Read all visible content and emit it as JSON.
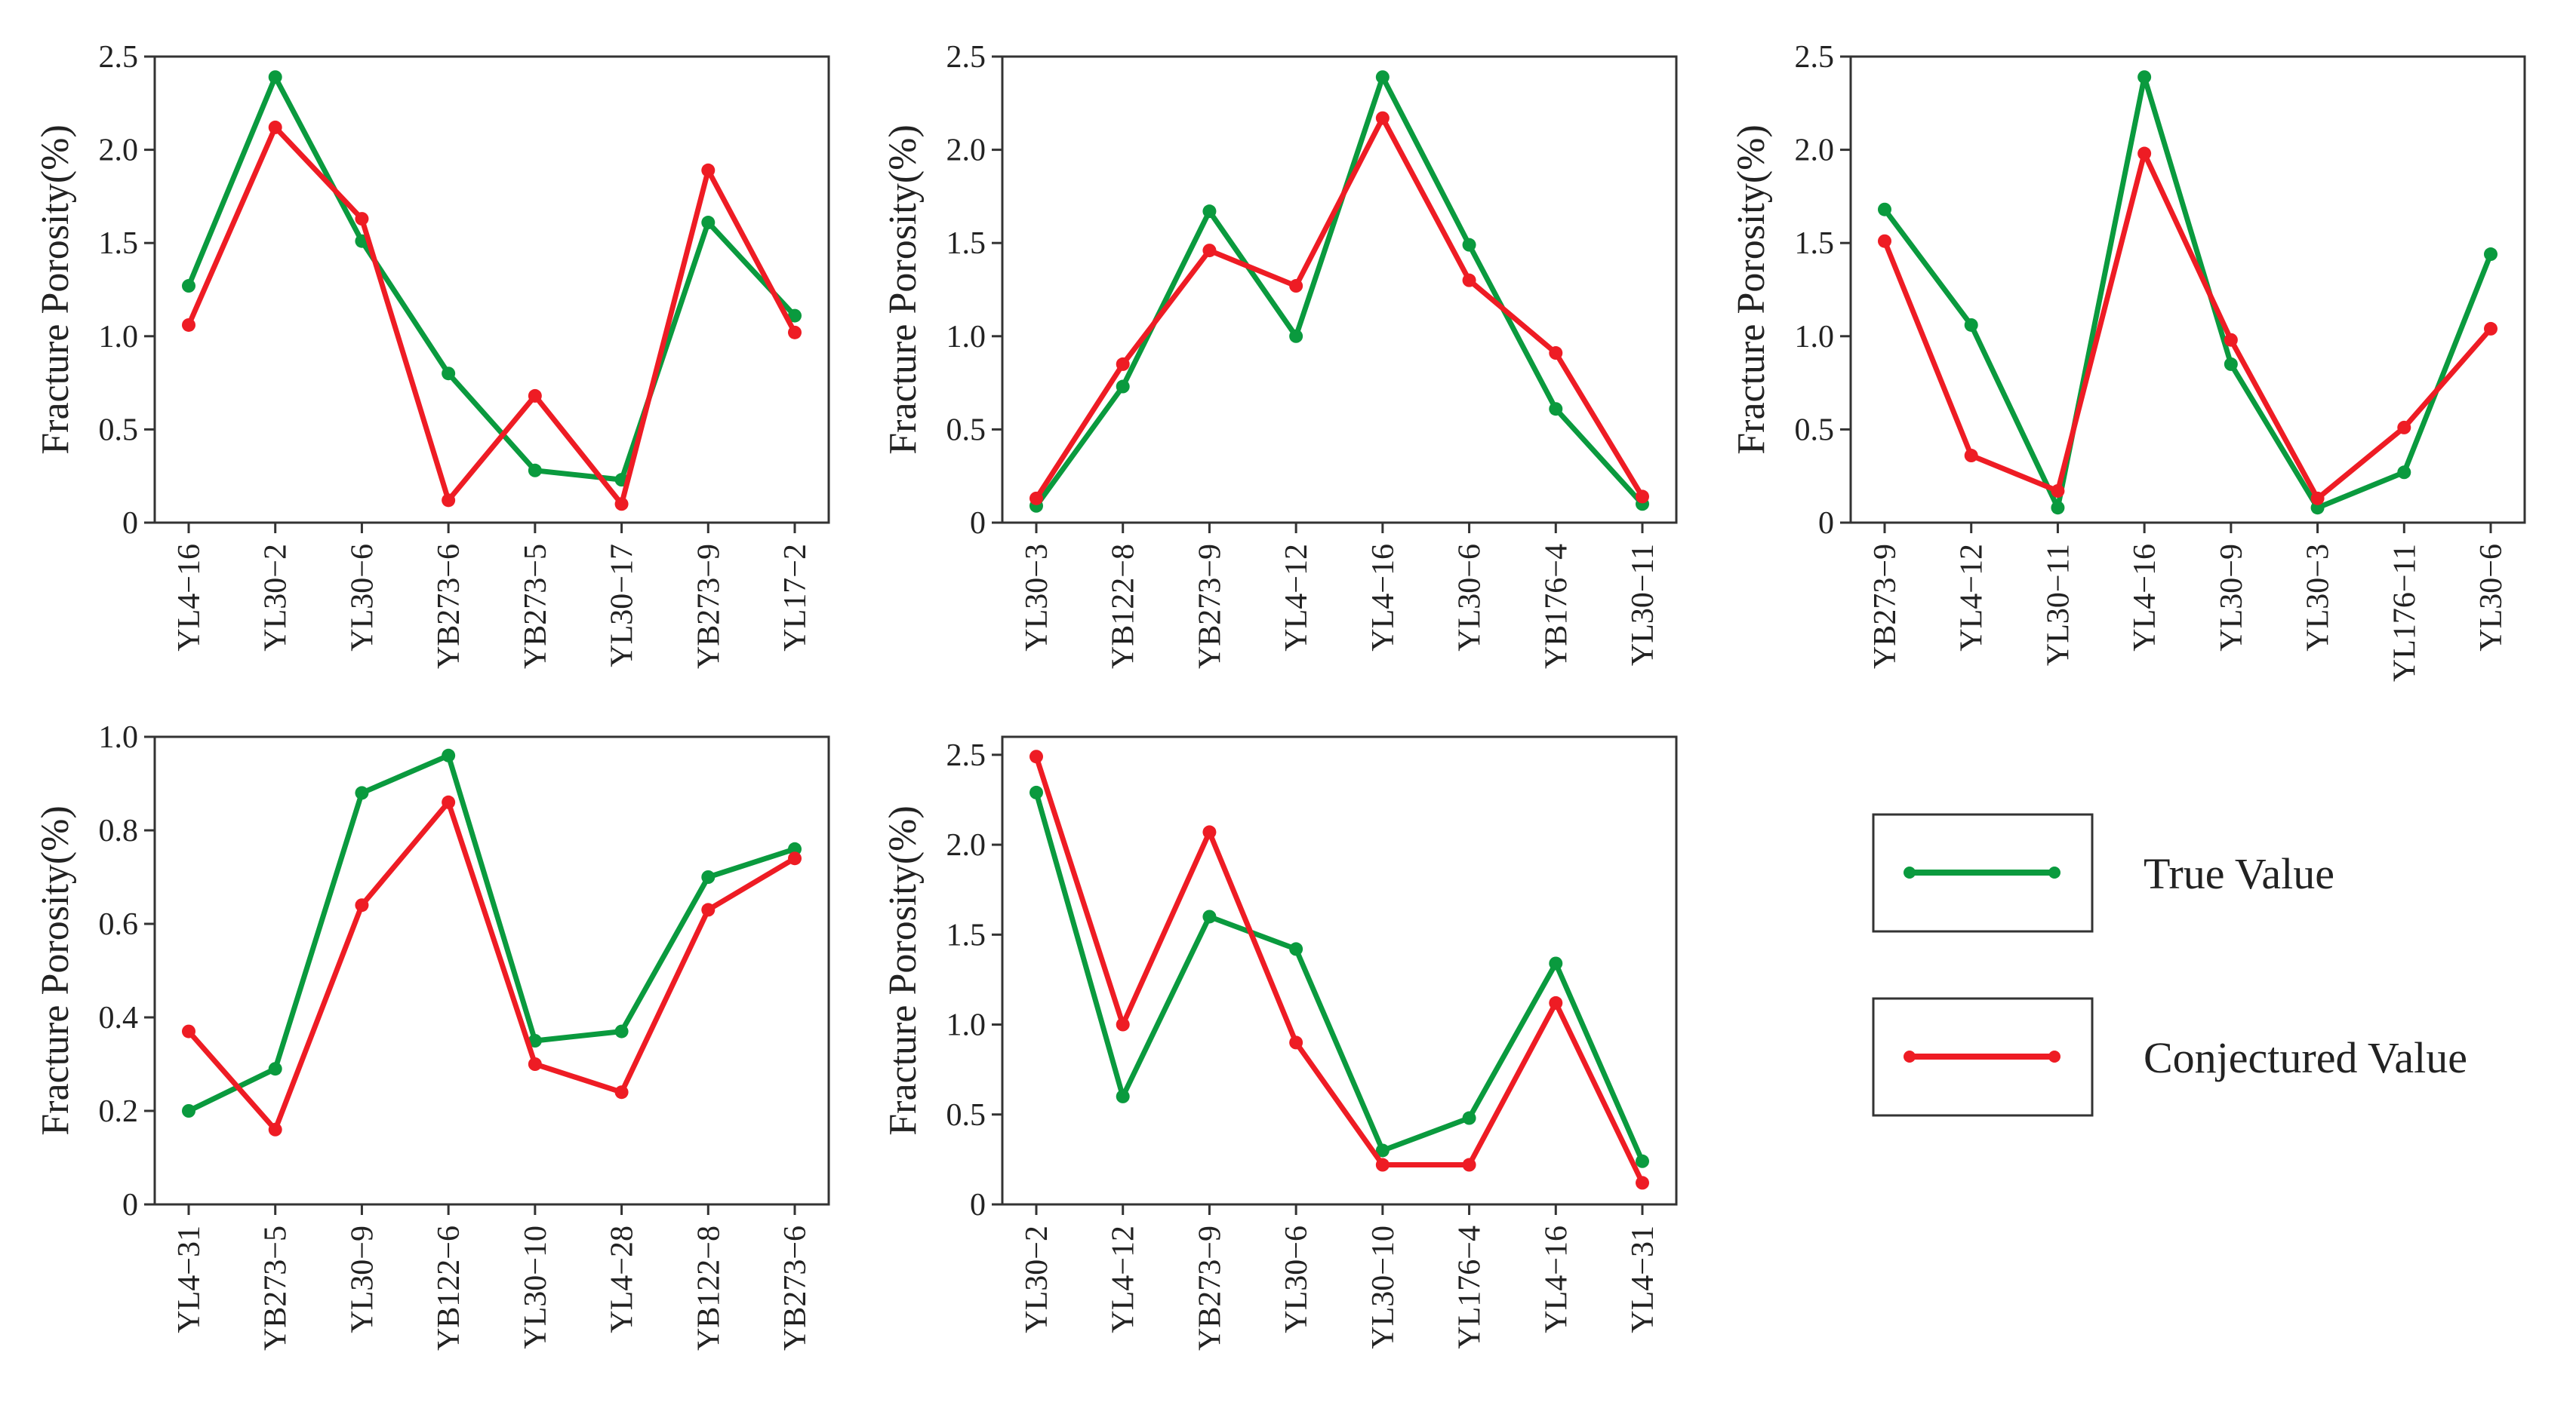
{
  "figure": {
    "legend": {
      "true_label": "True Value",
      "conjectured_label": "Conjectured Value"
    }
  },
  "colors": {
    "true": "#0a9a3e",
    "conjectured": "#ee1c24",
    "frame": "#333333"
  },
  "chart_data": [
    {
      "type": "line",
      "ylabel": "Fracture Porosity(%)",
      "ylim": [
        0,
        2.5
      ],
      "yticks": [
        0,
        0.5,
        1.0,
        1.5,
        2.0,
        2.5
      ],
      "ytick_labels": [
        "0",
        "0.5",
        "1.0",
        "1.5",
        "2.0",
        "2.5"
      ],
      "categories": [
        "YL4−16",
        "YL30−2",
        "YL30−6",
        "YB273−6",
        "YB273−5",
        "YL30−17",
        "YB273−9",
        "YL17−2"
      ],
      "series": [
        {
          "name": "True Value",
          "values": [
            1.27,
            2.39,
            1.51,
            0.8,
            0.28,
            0.23,
            1.61,
            1.11
          ]
        },
        {
          "name": "Conjectured Value",
          "values": [
            1.06,
            2.12,
            1.63,
            0.12,
            0.68,
            0.1,
            1.89,
            1.02
          ]
        }
      ]
    },
    {
      "type": "line",
      "ylabel": "Fracture Porosity(%)",
      "ylim": [
        0,
        2.5
      ],
      "yticks": [
        0,
        0.5,
        1.0,
        1.5,
        2.0,
        2.5
      ],
      "ytick_labels": [
        "0",
        "0.5",
        "1.0",
        "1.5",
        "2.0",
        "2.5"
      ],
      "categories": [
        "YL30−3",
        "YB122−8",
        "YB273−9",
        "YL4−12",
        "YL4−16",
        "YL30−6",
        "YB176−4",
        "YL30−11"
      ],
      "series": [
        {
          "name": "True Value",
          "values": [
            0.09,
            0.73,
            1.67,
            1.0,
            2.39,
            1.49,
            0.61,
            0.1
          ]
        },
        {
          "name": "Conjectured Value",
          "values": [
            0.13,
            0.85,
            1.46,
            1.27,
            2.17,
            1.3,
            0.91,
            0.14
          ]
        }
      ]
    },
    {
      "type": "line",
      "ylabel": "Fracture Porosity(%)",
      "ylim": [
        0,
        2.5
      ],
      "yticks": [
        0,
        0.5,
        1.0,
        1.5,
        2.0,
        2.5
      ],
      "ytick_labels": [
        "0",
        "0.5",
        "1.0",
        "1.5",
        "2.0",
        "2.5"
      ],
      "categories": [
        "YB273−9",
        "YL4−12",
        "YL30−11",
        "YL4−16",
        "YL30−9",
        "YL30−3",
        "YL176−11",
        "YL30−6"
      ],
      "series": [
        {
          "name": "True Value",
          "values": [
            1.68,
            1.06,
            0.08,
            2.39,
            0.85,
            0.08,
            0.27,
            1.44
          ]
        },
        {
          "name": "Conjectured Value",
          "values": [
            1.51,
            0.36,
            0.17,
            1.98,
            0.98,
            0.13,
            0.51,
            1.04
          ]
        }
      ]
    },
    {
      "type": "line",
      "ylabel": "Fracture Porosity(%)",
      "ylim": [
        0,
        1.0
      ],
      "yticks": [
        0,
        0.2,
        0.4,
        0.6,
        0.8,
        1.0
      ],
      "ytick_labels": [
        "0",
        "0.2",
        "0.4",
        "0.6",
        "0.8",
        "1.0"
      ],
      "categories": [
        "YL4−31",
        "YB273−5",
        "YL30−9",
        "YB122−6",
        "YL30−10",
        "YL4−28",
        "YB122−8",
        "YB273−6"
      ],
      "series": [
        {
          "name": "True Value",
          "values": [
            0.2,
            0.29,
            0.88,
            0.96,
            0.35,
            0.37,
            0.7,
            0.76
          ]
        },
        {
          "name": "Conjectured Value",
          "values": [
            0.37,
            0.16,
            0.64,
            0.86,
            0.3,
            0.24,
            0.63,
            0.74
          ]
        }
      ]
    },
    {
      "type": "line",
      "ylabel": "Fracture Porosity(%)",
      "ylim": [
        0,
        2.6
      ],
      "yticks": [
        0,
        0.5,
        1.0,
        1.5,
        2.0,
        2.5
      ],
      "ytick_labels": [
        "0",
        "0.5",
        "1.0",
        "1.5",
        "2.0",
        "2.5"
      ],
      "categories": [
        "YL30−2",
        "YL4−12",
        "YB273−9",
        "YL30−6",
        "YL30−10",
        "YL176−4",
        "YL4−16",
        "YL4−31"
      ],
      "series": [
        {
          "name": "True Value",
          "values": [
            2.29,
            0.6,
            1.6,
            1.42,
            0.3,
            0.48,
            1.34,
            0.24
          ]
        },
        {
          "name": "Conjectured Value",
          "values": [
            2.49,
            1.0,
            2.07,
            0.9,
            0.22,
            0.22,
            1.12,
            0.12
          ]
        }
      ]
    }
  ]
}
